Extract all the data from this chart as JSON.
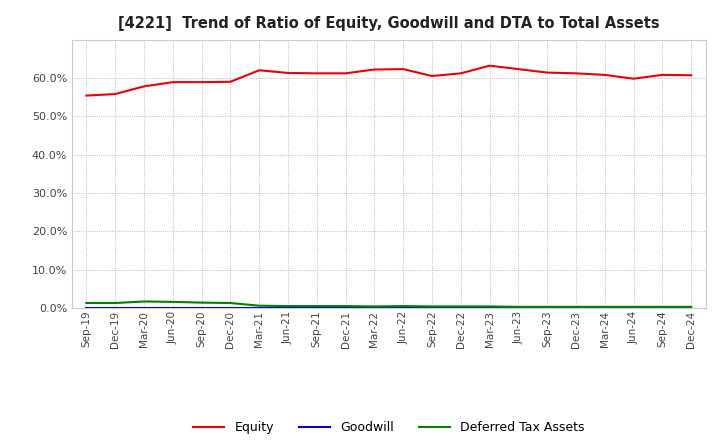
{
  "title": "[4221]  Trend of Ratio of Equity, Goodwill and DTA to Total Assets",
  "x_labels": [
    "Sep-19",
    "Dec-19",
    "Mar-20",
    "Jun-20",
    "Sep-20",
    "Dec-20",
    "Mar-21",
    "Jun-21",
    "Sep-21",
    "Dec-21",
    "Mar-22",
    "Jun-22",
    "Sep-22",
    "Dec-22",
    "Mar-23",
    "Jun-23",
    "Sep-23",
    "Dec-23",
    "Mar-24",
    "Jun-24",
    "Sep-24",
    "Dec-24"
  ],
  "equity": [
    0.554,
    0.558,
    0.578,
    0.589,
    0.589,
    0.59,
    0.62,
    0.613,
    0.612,
    0.612,
    0.622,
    0.623,
    0.605,
    0.612,
    0.632,
    0.623,
    0.614,
    0.612,
    0.608,
    0.598,
    0.608,
    0.607
  ],
  "goodwill": [
    0.0,
    0.0,
    0.0,
    0.0,
    0.0,
    0.0,
    0.0,
    0.0,
    0.0,
    0.0,
    0.0,
    0.0,
    0.0,
    0.0,
    0.0,
    0.0,
    0.0,
    0.0,
    0.0,
    0.0,
    0.0,
    0.0
  ],
  "dta": [
    0.013,
    0.013,
    0.017,
    0.016,
    0.014,
    0.013,
    0.006,
    0.005,
    0.005,
    0.005,
    0.004,
    0.005,
    0.004,
    0.004,
    0.004,
    0.003,
    0.003,
    0.003,
    0.003,
    0.003,
    0.003,
    0.003
  ],
  "equity_color": "#e8000d",
  "goodwill_color": "#0000cd",
  "dta_color": "#008000",
  "ylim": [
    0.0,
    0.7
  ],
  "yticks": [
    0.0,
    0.1,
    0.2,
    0.3,
    0.4,
    0.5,
    0.6
  ],
  "background_color": "#ffffff",
  "grid_color": "#aaaaaa",
  "legend_labels": [
    "Equity",
    "Goodwill",
    "Deferred Tax Assets"
  ]
}
